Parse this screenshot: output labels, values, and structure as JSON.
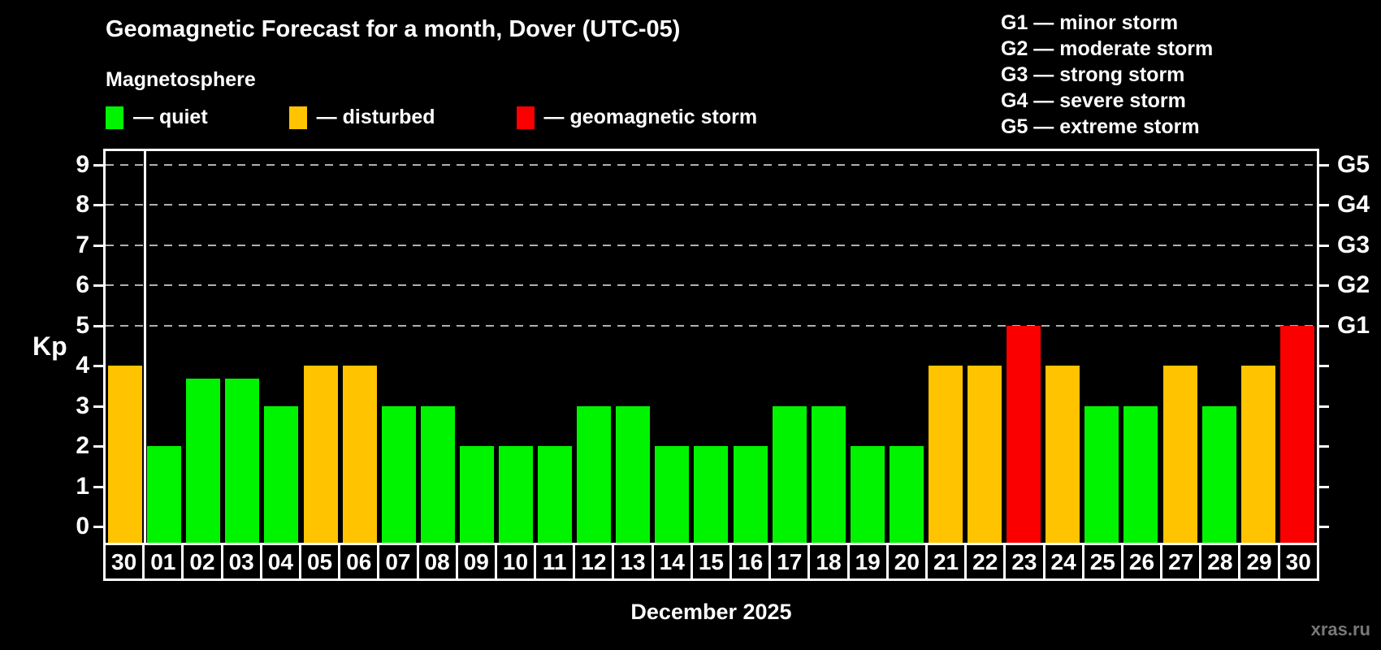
{
  "title": "Geomagnetic Forecast for a month, Dover (UTC-05)",
  "subtitle": "Magnetosphere",
  "legend": {
    "items": [
      {
        "key": "quiet",
        "label": "— quiet",
        "color": "#00f400"
      },
      {
        "key": "disturbed",
        "label": "— disturbed",
        "color": "#ffc300"
      },
      {
        "key": "storm",
        "label": "— geomagnetic storm",
        "color": "#fa0000"
      }
    ]
  },
  "g_legend": {
    "lines": [
      "G1 — minor storm",
      "G2 — moderate storm",
      "G3 — strong storm",
      "G4 — severe storm",
      "G5 — extreme storm"
    ]
  },
  "watermark": "xras.ru",
  "chart_data": {
    "type": "bar",
    "title": "Geomagnetic Forecast for a month, Dover (UTC-05)",
    "xlabel": "December 2025",
    "ylabel": "Kp",
    "ylim": [
      0,
      9
    ],
    "y_ticks": [
      0,
      1,
      2,
      3,
      4,
      5,
      6,
      7,
      8,
      9
    ],
    "gridlines_at": [
      5,
      6,
      7,
      8,
      9
    ],
    "right_axis_labels": [
      {
        "kp": 5,
        "label": "G1"
      },
      {
        "kp": 6,
        "label": "G2"
      },
      {
        "kp": 7,
        "label": "G3"
      },
      {
        "kp": 8,
        "label": "G4"
      },
      {
        "kp": 9,
        "label": "G5"
      }
    ],
    "status_colors": {
      "quiet": "#00f400",
      "disturbed": "#ffc300",
      "storm": "#fa0000"
    },
    "grid_color": "#b0b0b0",
    "axis_color": "#ffffff",
    "month_boundary_after_index": 0,
    "categories": [
      "30",
      "01",
      "02",
      "03",
      "04",
      "05",
      "06",
      "07",
      "08",
      "09",
      "10",
      "11",
      "12",
      "13",
      "14",
      "15",
      "16",
      "17",
      "18",
      "19",
      "20",
      "21",
      "22",
      "23",
      "24",
      "25",
      "26",
      "27",
      "28",
      "29",
      "30"
    ],
    "values": [
      4,
      2,
      3.67,
      3.67,
      3,
      4,
      4,
      3,
      3,
      2,
      2,
      2,
      3,
      3,
      2,
      2,
      2,
      3,
      3,
      2,
      2,
      4,
      4,
      5,
      4,
      3,
      3,
      4,
      3,
      4,
      5
    ],
    "statuses": [
      "disturbed",
      "quiet",
      "quiet",
      "quiet",
      "quiet",
      "disturbed",
      "disturbed",
      "quiet",
      "quiet",
      "quiet",
      "quiet",
      "quiet",
      "quiet",
      "quiet",
      "quiet",
      "quiet",
      "quiet",
      "quiet",
      "quiet",
      "quiet",
      "quiet",
      "disturbed",
      "disturbed",
      "storm",
      "disturbed",
      "quiet",
      "quiet",
      "disturbed",
      "quiet",
      "disturbed",
      "storm"
    ]
  }
}
